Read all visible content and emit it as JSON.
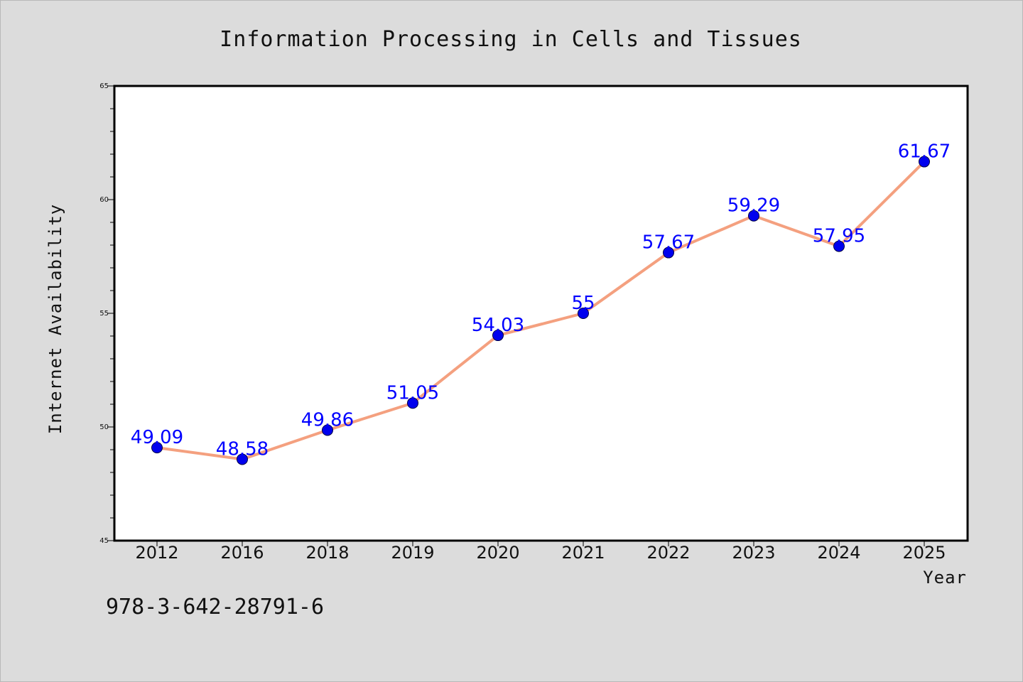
{
  "chart_data": {
    "type": "line",
    "title": "Information Processing in Cells and Tissues",
    "xlabel": "Year",
    "ylabel": "Internet Availability",
    "categories": [
      "2012",
      "2016",
      "2018",
      "2019",
      "2020",
      "2021",
      "2022",
      "2023",
      "2024",
      "2025"
    ],
    "series": [
      {
        "values": [
          49.09,
          48.58,
          49.86,
          51.05,
          54.03,
          55,
          57.67,
          59.29,
          57.95,
          61.67
        ],
        "labels": [
          "49.09",
          "48.58",
          "49.86",
          "51.05",
          "54.03",
          "55",
          "57.67",
          "59.29",
          "57.95",
          "61.67"
        ],
        "line_color": "#f4a07f",
        "marker_color": "#0000ee"
      }
    ],
    "ylim": [
      45,
      65
    ],
    "yticks": [
      "45",
      "50",
      "55",
      "60",
      "65"
    ],
    "grid": false,
    "legend": "none"
  },
  "footnote": "978-3-642-28791-6",
  "colors": {
    "background": "#dcdcdc",
    "plot_area": "#ffffff",
    "label_color": "#0000ff"
  }
}
